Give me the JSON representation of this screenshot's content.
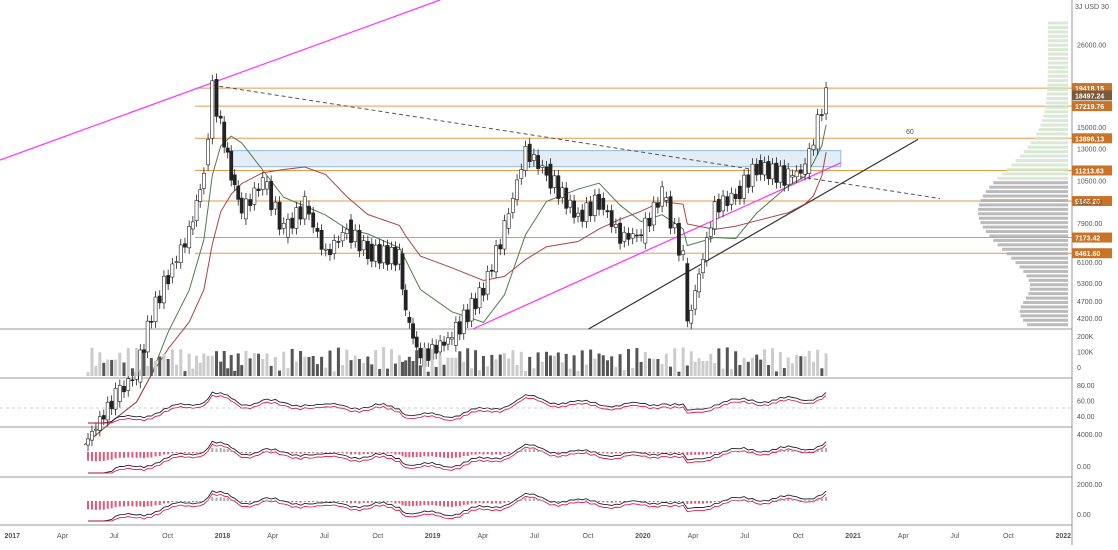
{
  "chart_data": [
    {
      "type": "candlestick",
      "price_axis": {
        "scale": "log",
        "currency_label": "USD",
        "ticks": [
          "26000.00",
          "15000.00",
          "13000.00",
          "10500.00",
          "9100.00",
          "7900.00",
          "6100.00",
          "5300.00",
          "4700.00",
          "4200.00"
        ],
        "top_tick": "3J USD 30"
      },
      "time_axis": {
        "ticks": [
          "2017",
          "Apr",
          "Jul",
          "Oct",
          "2018",
          "Apr",
          "Jul",
          "Oct",
          "2019",
          "Apr",
          "Jul",
          "Oct",
          "2020",
          "Apr",
          "Jul",
          "Oct",
          "2021",
          "Apr",
          "Jul",
          "Oct",
          "2022"
        ]
      },
      "price_levels": [
        {
          "label": "19418.15",
          "value": 19418.15
        },
        {
          "label": "18497.24",
          "value": 18497.24
        },
        {
          "label": "17219.76",
          "value": 17219.76
        },
        {
          "label": "13896.13",
          "value": 13896.13
        },
        {
          "label": "11213.63",
          "value": 11213.63
        },
        {
          "label": "9148.20",
          "value": 9148.2
        },
        {
          "label": "7173.42",
          "value": 7173.42
        },
        {
          "label": "6461.60",
          "value": 6461.6
        }
      ],
      "annotation": "60",
      "weekly_close": [
        [
          2017.35,
          1800
        ],
        [
          2017.5,
          2500
        ],
        [
          2017.6,
          2900
        ],
        [
          2017.67,
          4300
        ],
        [
          2017.75,
          5600
        ],
        [
          2017.85,
          7400
        ],
        [
          2017.92,
          11000
        ],
        [
          2017.96,
          19400
        ],
        [
          2018.0,
          15000
        ],
        [
          2018.05,
          11000
        ],
        [
          2018.1,
          8500
        ],
        [
          2018.2,
          10500
        ],
        [
          2018.3,
          7500
        ],
        [
          2018.4,
          8900
        ],
        [
          2018.5,
          6400
        ],
        [
          2018.6,
          7600
        ],
        [
          2018.7,
          6500
        ],
        [
          2018.85,
          6300
        ],
        [
          2018.88,
          4300
        ],
        [
          2018.95,
          3200
        ],
        [
          2019.1,
          3700
        ],
        [
          2019.25,
          5100
        ],
        [
          2019.35,
          7600
        ],
        [
          2019.45,
          12800
        ],
        [
          2019.55,
          11000
        ],
        [
          2019.7,
          8200
        ],
        [
          2019.8,
          9200
        ],
        [
          2019.9,
          7200
        ],
        [
          2020.0,
          7300
        ],
        [
          2020.1,
          9700
        ],
        [
          2020.2,
          6200
        ],
        [
          2020.22,
          4000
        ],
        [
          2020.35,
          8800
        ],
        [
          2020.45,
          9500
        ],
        [
          2020.55,
          11500
        ],
        [
          2020.7,
          10700
        ],
        [
          2020.78,
          11400
        ],
        [
          2020.82,
          13700
        ],
        [
          2020.86,
          17200
        ],
        [
          2020.88,
          18500
        ]
      ]
    },
    {
      "type": "bar",
      "name": "volume",
      "axis_ticks": [
        "200K",
        "100K",
        "0"
      ]
    },
    {
      "type": "line",
      "name": "rsi",
      "axis_ticks": [
        "80.00",
        "60.00",
        "40.00"
      ]
    },
    {
      "type": "line",
      "name": "momentum",
      "axis_ticks": [
        "4000.00",
        "0.00"
      ]
    },
    {
      "type": "line",
      "name": "macd",
      "axis_ticks": [
        "2000.00",
        "0.00"
      ]
    }
  ],
  "colors": {
    "up": "#ffffff",
    "down": "#222222",
    "level_line": "#e59a4a",
    "level_tag": "#c87328",
    "current_tag": "#7a5a3a",
    "magenta": "#ff33ff",
    "trendline": "#333333",
    "ma_green": "#4f7d4f",
    "ma_red": "#a44"
  }
}
